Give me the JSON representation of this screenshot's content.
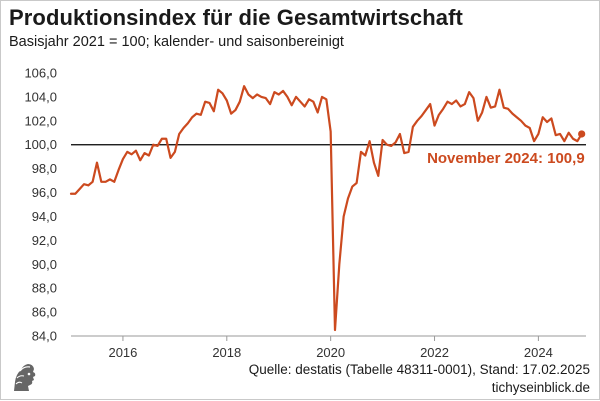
{
  "header": {
    "title": "Produktionsindex für die Gesamtwirtschaft",
    "subtitle": "Basisjahr 2021 = 100; kalender- und saisonbereinigt"
  },
  "footer": {
    "source": "Quelle: destatis (Tabelle 48311-0001), Stand: 17.02.2025",
    "brand": "tichyseinblick.de",
    "logo_icon": "athena-head-icon"
  },
  "chart_data": {
    "type": "line",
    "title": "Produktionsindex für die Gesamtwirtschaft",
    "subtitle": "Basisjahr 2021 = 100; kalender- und saisonbereinigt",
    "xlabel": "",
    "ylabel": "",
    "xlim": [
      "2015-01",
      "2024-12"
    ],
    "ylim": [
      84,
      106
    ],
    "y_ticks": [
      "84,0",
      "86,0",
      "88,0",
      "90,0",
      "92,0",
      "94,0",
      "96,0",
      "98,0",
      "100,0",
      "102,0",
      "104,0",
      "106,0"
    ],
    "x_ticks": [
      "2016",
      "2018",
      "2020",
      "2022",
      "2024"
    ],
    "reference_line": 100,
    "grid": false,
    "line_color": "#cc4a1f",
    "reference_color": "#000000",
    "annotation": {
      "text": "November 2024: 100,9",
      "x": "2024-11",
      "y": 100.9
    },
    "series": [
      {
        "x_start": "2015-01",
        "frequency": "monthly",
        "values": [
          95.9,
          95.9,
          96.3,
          96.7,
          96.6,
          96.9,
          98.5,
          96.9,
          96.9,
          97.1,
          96.9,
          97.9,
          98.8,
          99.4,
          99.2,
          99.5,
          98.7,
          99.3,
          99.1,
          100.0,
          99.9,
          100.5,
          100.5,
          98.9,
          99.4,
          100.9,
          101.4,
          101.8,
          102.3,
          102.6,
          102.5,
          103.6,
          103.5,
          102.8,
          104.6,
          104.3,
          103.7,
          102.6,
          102.9,
          103.6,
          104.9,
          104.2,
          103.9,
          104.2,
          104.0,
          103.9,
          103.4,
          104.4,
          104.2,
          104.5,
          104.0,
          103.3,
          104.0,
          103.6,
          103.2,
          103.8,
          103.6,
          102.7,
          104.0,
          103.8,
          101.1,
          84.5,
          90.0,
          94.0,
          95.5,
          96.5,
          96.8,
          99.4,
          99.1,
          100.3,
          98.5,
          97.4,
          100.4,
          100.0,
          99.9,
          100.2,
          100.9,
          99.3,
          99.4,
          101.5,
          102.0,
          102.4,
          102.9,
          103.4,
          101.6,
          102.5,
          103.0,
          103.6,
          103.4,
          103.7,
          103.2,
          103.4,
          104.4,
          103.9,
          102.0,
          102.7,
          104.0,
          103.1,
          103.2,
          104.6,
          103.1,
          103.0,
          102.6,
          102.3,
          102.0,
          101.6,
          101.4,
          100.3,
          100.9,
          102.3,
          101.9,
          102.2,
          100.8,
          100.9,
          100.3,
          101.0,
          100.5,
          100.3,
          100.9
        ]
      }
    ]
  }
}
